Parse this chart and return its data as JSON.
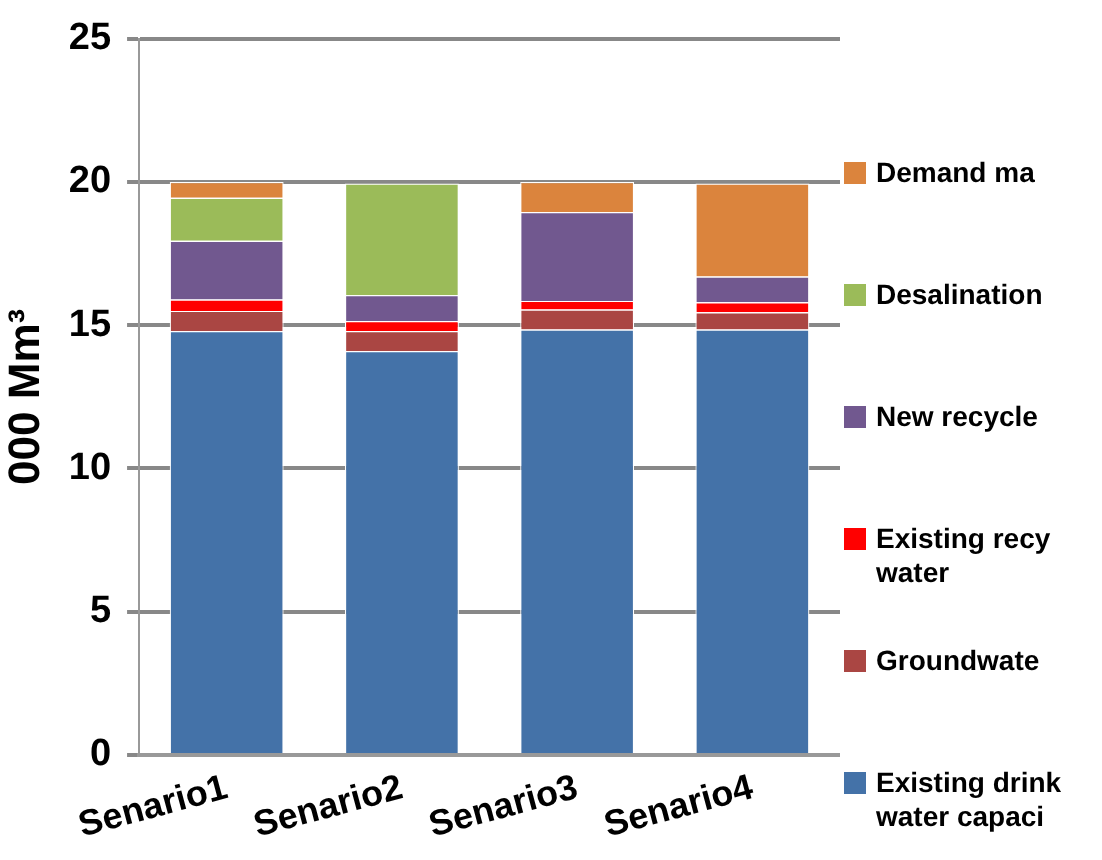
{
  "chart_data": {
    "type": "bar",
    "stacked": true,
    "categories": [
      "Senario1",
      "Senario2",
      "Senario3",
      "Senario4"
    ],
    "ylabel": "000 Mm³",
    "ylim": [
      0,
      25
    ],
    "yticks": [
      0,
      5,
      10,
      15,
      20,
      25
    ],
    "grid": "y",
    "legend": "right",
    "series": [
      {
        "name": "Existing drink water capaci",
        "color": "#4472a8",
        "values": [
          14.8,
          14.1,
          14.85,
          14.85
        ]
      },
      {
        "name": "Groundwate",
        "color": "#aa4643",
        "values": [
          0.7,
          0.7,
          0.7,
          0.6
        ]
      },
      {
        "name": "Existing recy water",
        "color": "#ff0000",
        "values": [
          0.4,
          0.35,
          0.3,
          0.35
        ]
      },
      {
        "name": "New recycle",
        "color": "#71588f",
        "values": [
          2.05,
          0.9,
          3.1,
          0.9
        ]
      },
      {
        "name": "Desalination",
        "color": "#9bbb59",
        "values": [
          1.5,
          3.9,
          0,
          0
        ]
      },
      {
        "name": "Demand ma",
        "color": "#db843d",
        "values": [
          0.55,
          0,
          1.05,
          3.25
        ]
      }
    ]
  }
}
